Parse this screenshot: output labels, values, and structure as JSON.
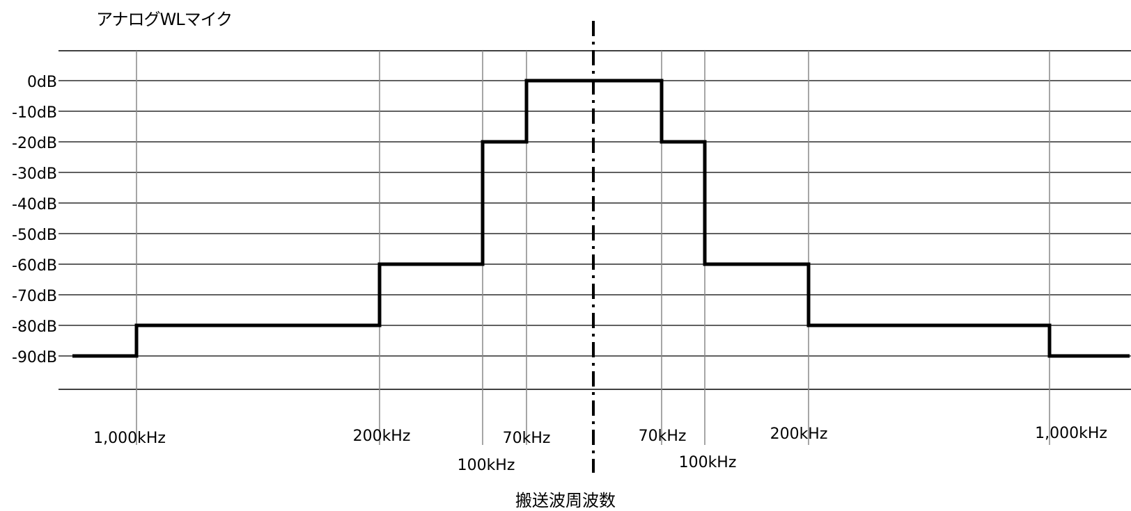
{
  "chart_data": {
    "type": "line",
    "title": "アナログWLマイク",
    "xlabel": "搬送波周波数",
    "ylabel": "",
    "y_ticks": [
      "0dB",
      "-10dB",
      "-20dB",
      "-30dB",
      "-40dB",
      "-50dB",
      "-60dB",
      "-70dB",
      "-80dB",
      "-90dB"
    ],
    "ylim": [
      -90,
      0
    ],
    "x_ticks": [
      {
        "label": "1,000kHz",
        "side": "lower",
        "offset_khz": -1000
      },
      {
        "label": "200kHz",
        "side": "lower",
        "offset_khz": -200
      },
      {
        "label": "100kHz",
        "side": "lower",
        "offset_khz": -100
      },
      {
        "label": "70kHz",
        "side": "lower",
        "offset_khz": -70
      },
      {
        "label": "70kHz",
        "side": "upper",
        "offset_khz": 70
      },
      {
        "label": "100kHz",
        "side": "upper",
        "offset_khz": 100
      },
      {
        "label": "200kHz",
        "side": "upper",
        "offset_khz": 200
      },
      {
        "label": "1,000kHz",
        "side": "upper",
        "offset_khz": 1000
      }
    ],
    "center_marker": "carrier",
    "series": [
      {
        "points": [
          {
            "x": "beyond lower 1,000kHz",
            "y": -90
          },
          {
            "x": "lower 1,000kHz",
            "y": -90
          },
          {
            "x": "lower 1,000kHz",
            "y": -80
          },
          {
            "x": "lower 200kHz",
            "y": -80
          },
          {
            "x": "lower 200kHz",
            "y": -60
          },
          {
            "x": "lower 100kHz",
            "y": -60
          },
          {
            "x": "lower 100kHz",
            "y": -20
          },
          {
            "x": "lower 70kHz",
            "y": -20
          },
          {
            "x": "lower 70kHz",
            "y": 0
          },
          {
            "x": "upper 70kHz",
            "y": 0
          },
          {
            "x": "upper 70kHz",
            "y": -20
          },
          {
            "x": "upper 100kHz",
            "y": -20
          },
          {
            "x": "upper 100kHz",
            "y": -60
          },
          {
            "x": "upper 200kHz",
            "y": -60
          },
          {
            "x": "upper 200kHz",
            "y": -80
          },
          {
            "x": "upper 1,000kHz",
            "y": -80
          },
          {
            "x": "upper 1,000kHz",
            "y": -90
          },
          {
            "x": "beyond upper 1,000kHz",
            "y": -90
          }
        ]
      }
    ],
    "grid": true,
    "legend": "none"
  }
}
